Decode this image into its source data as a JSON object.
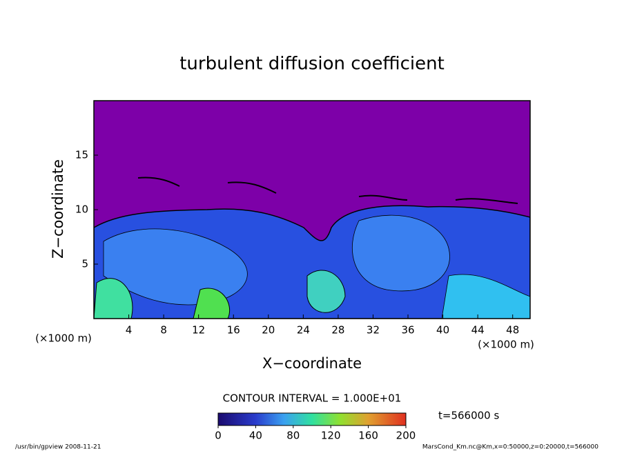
{
  "chart_data": {
    "type": "contour",
    "title": "turbulent diffusion coefficient",
    "xlabel": "X−coordinate",
    "ylabel": "Z−coordinate",
    "xunit": "(×1000 m)",
    "yunit": "(×1000 m)",
    "xlim": [
      0,
      50
    ],
    "xticks": [
      4,
      8,
      12,
      16,
      20,
      24,
      28,
      32,
      36,
      40,
      44,
      48
    ],
    "ylim": [
      0,
      20
    ],
    "yticks": [
      5,
      10,
      15
    ],
    "contour_interval": "CONTOUR INTERVAL = 1.000E+01",
    "colorbar": {
      "lim": [
        0,
        200
      ],
      "ticks": [
        0,
        40,
        80,
        120,
        160,
        200
      ]
    },
    "time_label": "t=566000 s",
    "footer_left": "/usr/bin/gpview   2008-11-21",
    "footer_right": "MarsCond_Km.nc@Km,x=0:50000,z=0:20000,t=566000"
  }
}
